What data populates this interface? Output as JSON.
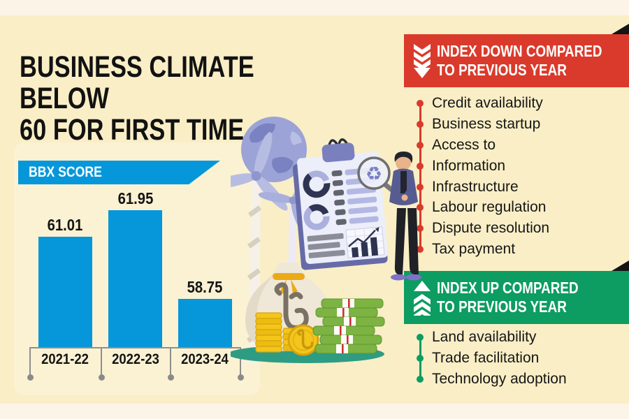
{
  "page": {
    "title_line1": "BUSINESS CLIMATE BELOW",
    "title_line2": "60 FOR FIRST TIME"
  },
  "chart_data": {
    "type": "bar",
    "title": "BBX SCORE",
    "categories": [
      "2021-22",
      "2022-23",
      "2023-24"
    ],
    "values": [
      61.01,
      61.95,
      58.75
    ],
    "value_labels": [
      "61.01",
      "61.95",
      "58.75"
    ],
    "xlabel": "",
    "ylabel": "",
    "ylim": [
      57,
      63
    ],
    "grid": false,
    "legend": "none",
    "bar_color": "#0697DA"
  },
  "down_panel": {
    "header_line1": "INDEX DOWN COMPARED",
    "header_line2": "TO PREVIOUS YEAR",
    "items": [
      "Credit availability",
      "Business startup",
      "Access to",
      "Information",
      "Infrastructure",
      "Labour regulation",
      "Dispute resolution",
      "Tax payment"
    ]
  },
  "up_panel": {
    "header_line1": "INDEX UP COMPARED",
    "header_line2": "TO PREVIOUS YEAR",
    "items": [
      "Land availability",
      "Trade facilitation",
      "Technology adoption"
    ]
  },
  "icons": {
    "down": "triple-chevron-down-icon",
    "up": "triple-chevron-up-icon",
    "fold": "page-fold-corner",
    "illustration": "sustainability-business-report-illustration"
  },
  "colors": {
    "background": "#F9EEC6",
    "edge_strip": "#FCF4E6",
    "panel": "#FBF2D3",
    "accent_blue": "#0697DA",
    "down_red": "#DA3A2B",
    "up_green": "#0D9C61",
    "text_dark": "#141414"
  }
}
